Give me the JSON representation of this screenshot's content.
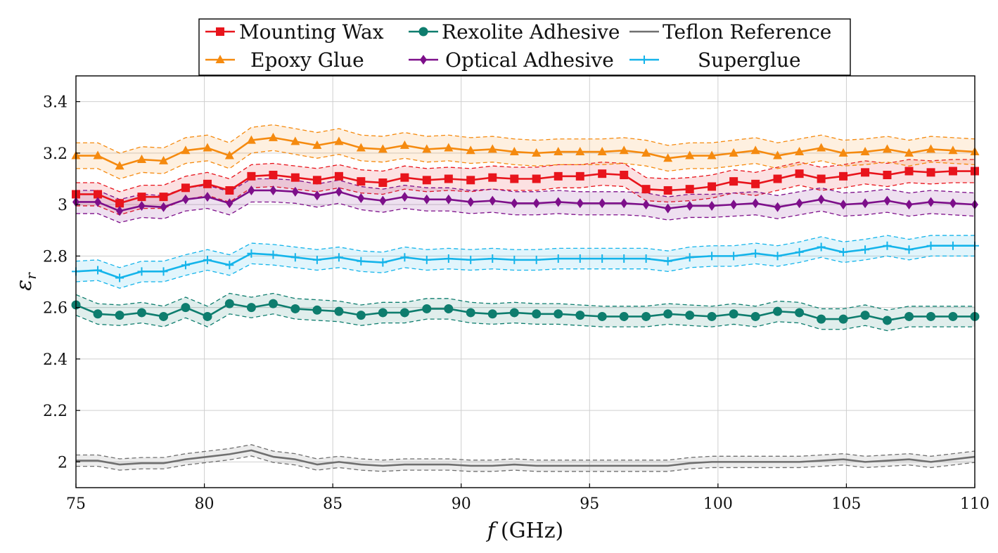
{
  "chart_data": {
    "type": "line",
    "title": "",
    "xlabel_var": "f",
    "xlabel_unit": "(GHz)",
    "ylabel_var": "ε",
    "ylabel_sub": "r",
    "xlim": [
      75,
      110
    ],
    "ylim": [
      1.9,
      3.5
    ],
    "xticks": [
      "75",
      "80",
      "85",
      "90",
      "95",
      "100",
      "105",
      "110"
    ],
    "yticks": [
      "2",
      "2.2",
      "2.4",
      "2.6",
      "2.8",
      "3",
      "3.2",
      "3.4"
    ],
    "grid": true,
    "legend_position": "top",
    "x": [
      75,
      75.85,
      76.7,
      77.56,
      78.41,
      79.27,
      80.12,
      80.98,
      81.83,
      82.68,
      83.54,
      84.39,
      85.24,
      86.1,
      86.95,
      87.8,
      88.66,
      89.51,
      90.37,
      91.22,
      92.07,
      92.93,
      93.78,
      94.63,
      95.49,
      96.34,
      97.2,
      98.05,
      98.9,
      99.76,
      100.61,
      101.46,
      102.32,
      103.17,
      104.02,
      104.88,
      105.73,
      106.59,
      107.44,
      108.29,
      109.15,
      110
    ],
    "series": [
      {
        "name": "Mounting Wax",
        "color": "#e8141c",
        "marker": "square",
        "band": 0.045,
        "values": [
          3.04,
          3.04,
          3.005,
          3.03,
          3.03,
          3.065,
          3.08,
          3.055,
          3.11,
          3.115,
          3.105,
          3.095,
          3.11,
          3.09,
          3.085,
          3.105,
          3.095,
          3.1,
          3.095,
          3.105,
          3.1,
          3.1,
          3.11,
          3.11,
          3.12,
          3.115,
          3.06,
          3.055,
          3.06,
          3.07,
          3.09,
          3.08,
          3.1,
          3.12,
          3.1,
          3.11,
          3.125,
          3.115,
          3.13,
          3.125,
          3.13,
          3.13
        ]
      },
      {
        "name": "Rexolite Adhesive",
        "color": "#0e7d6e",
        "marker": "circle",
        "band": 0.04,
        "values": [
          2.61,
          2.575,
          2.57,
          2.58,
          2.565,
          2.6,
          2.565,
          2.615,
          2.6,
          2.615,
          2.595,
          2.59,
          2.585,
          2.57,
          2.58,
          2.58,
          2.595,
          2.595,
          2.58,
          2.575,
          2.58,
          2.575,
          2.575,
          2.57,
          2.565,
          2.565,
          2.565,
          2.575,
          2.57,
          2.565,
          2.575,
          2.565,
          2.585,
          2.58,
          2.555,
          2.555,
          2.57,
          2.55,
          2.565,
          2.565,
          2.565,
          2.565
        ]
      },
      {
        "name": "Teflon Reference",
        "color": "#6f6f6f",
        "marker": "none",
        "band": 0.022,
        "values": [
          2.005,
          2.005,
          1.99,
          1.995,
          1.995,
          2.01,
          2.02,
          2.03,
          2.045,
          2.02,
          2.01,
          1.99,
          2.0,
          1.99,
          1.985,
          1.99,
          1.99,
          1.99,
          1.985,
          1.985,
          1.99,
          1.985,
          1.985,
          1.985,
          1.985,
          1.985,
          1.985,
          1.985,
          1.995,
          2.0,
          2.0,
          2.0,
          2.0,
          2.0,
          2.005,
          2.01,
          2.0,
          2.005,
          2.01,
          2.0,
          2.01,
          2.02
        ]
      },
      {
        "name": "Epoxy Glue",
        "color": "#f58a0f",
        "marker": "triangle",
        "band": 0.05,
        "values": [
          3.19,
          3.19,
          3.15,
          3.175,
          3.17,
          3.21,
          3.22,
          3.19,
          3.25,
          3.26,
          3.245,
          3.23,
          3.245,
          3.22,
          3.215,
          3.23,
          3.215,
          3.22,
          3.21,
          3.215,
          3.205,
          3.2,
          3.205,
          3.205,
          3.205,
          3.21,
          3.2,
          3.18,
          3.19,
          3.19,
          3.2,
          3.21,
          3.19,
          3.205,
          3.22,
          3.2,
          3.205,
          3.215,
          3.2,
          3.215,
          3.21,
          3.205
        ]
      },
      {
        "name": "Optical Adhesive",
        "color": "#7d0f8a",
        "marker": "diamond",
        "band": 0.045,
        "values": [
          3.01,
          3.01,
          2.975,
          2.995,
          2.99,
          3.02,
          3.03,
          3.005,
          3.055,
          3.055,
          3.05,
          3.035,
          3.05,
          3.025,
          3.015,
          3.03,
          3.02,
          3.02,
          3.01,
          3.015,
          3.005,
          3.005,
          3.01,
          3.005,
          3.005,
          3.005,
          3.0,
          2.985,
          2.995,
          2.995,
          3.0,
          3.005,
          2.99,
          3.005,
          3.02,
          3.0,
          3.005,
          3.015,
          3.0,
          3.01,
          3.005,
          3.0
        ]
      },
      {
        "name": "Superglue",
        "color": "#14b4ea",
        "marker": "plus",
        "band": 0.04,
        "values": [
          2.74,
          2.745,
          2.715,
          2.74,
          2.74,
          2.765,
          2.785,
          2.765,
          2.81,
          2.805,
          2.795,
          2.785,
          2.795,
          2.78,
          2.775,
          2.795,
          2.785,
          2.79,
          2.785,
          2.79,
          2.785,
          2.785,
          2.79,
          2.79,
          2.79,
          2.79,
          2.79,
          2.78,
          2.795,
          2.8,
          2.8,
          2.81,
          2.8,
          2.815,
          2.835,
          2.815,
          2.825,
          2.84,
          2.825,
          2.84,
          2.84,
          2.84
        ]
      }
    ]
  }
}
